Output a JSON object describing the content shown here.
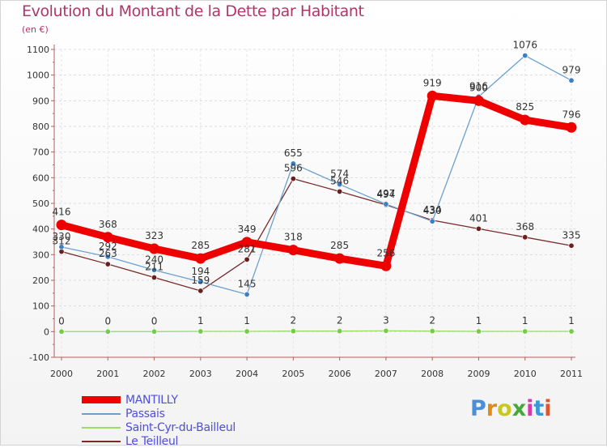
{
  "chart_data": {
    "type": "line",
    "title": "Evolution du Montant de la Dette par Habitant",
    "subtitle": "(en €)",
    "xlabel": "",
    "ylabel": "",
    "categories": [
      "2000",
      "2001",
      "2002",
      "2003",
      "2004",
      "2005",
      "2006",
      "2007",
      "2008",
      "2009",
      "2010",
      "2011"
    ],
    "ylim": [
      -100,
      1100
    ],
    "yticks": [
      -100,
      0,
      100,
      200,
      300,
      400,
      500,
      600,
      700,
      800,
      900,
      1000,
      1100
    ],
    "grid": true,
    "series": [
      {
        "name": "MANTILLY",
        "color": "#ee0000",
        "values": [
          416,
          368,
          323,
          285,
          349,
          318,
          285,
          256,
          919,
          900,
          825,
          796
        ],
        "labels": [
          "416",
          "368",
          "323",
          "285",
          "349",
          "318",
          "285",
          "256",
          "919",
          "900",
          "825",
          "796"
        ]
      },
      {
        "name": "Passais",
        "color": "#6aa0d0",
        "marker_color": "#3a80c4",
        "values": [
          330,
          292,
          240,
          194,
          145,
          655,
          574,
          497,
          430,
          916,
          1076,
          979
        ],
        "labels": [
          "330",
          "292",
          "240",
          "194",
          "145",
          "655",
          "574",
          "497",
          "430",
          "916",
          "1076",
          "979"
        ]
      },
      {
        "name": "Saint-Cyr-du-Bailleul",
        "color": "#99dd66",
        "marker_color": "#77cc44",
        "values": [
          0,
          0,
          0,
          1,
          1,
          2,
          2,
          3,
          2,
          1,
          1,
          1
        ],
        "labels": [
          "0",
          "0",
          "0",
          "1",
          "1",
          "2",
          "2",
          "3",
          "2",
          "1",
          "1",
          "1"
        ]
      },
      {
        "name": "Le Teilleul",
        "color": "#7a2a2a",
        "marker_color": "#6a1f1f",
        "values": [
          312,
          263,
          211,
          159,
          281,
          596,
          546,
          494,
          434,
          401,
          368,
          335
        ],
        "labels": [
          "312",
          "263",
          "211",
          "159",
          "281",
          "596",
          "546",
          "494",
          "434",
          "401",
          "368",
          "335"
        ]
      }
    ]
  },
  "brand": {
    "text": "Proxiti",
    "letters": [
      "P",
      "r",
      "o",
      "x",
      "i",
      "t",
      "i"
    ],
    "colors": [
      "#4a8fd8",
      "#e08a1e",
      "#c8c81e",
      "#46a83a",
      "#d83aa8",
      "#3a9ad8",
      "#e0562a"
    ]
  }
}
